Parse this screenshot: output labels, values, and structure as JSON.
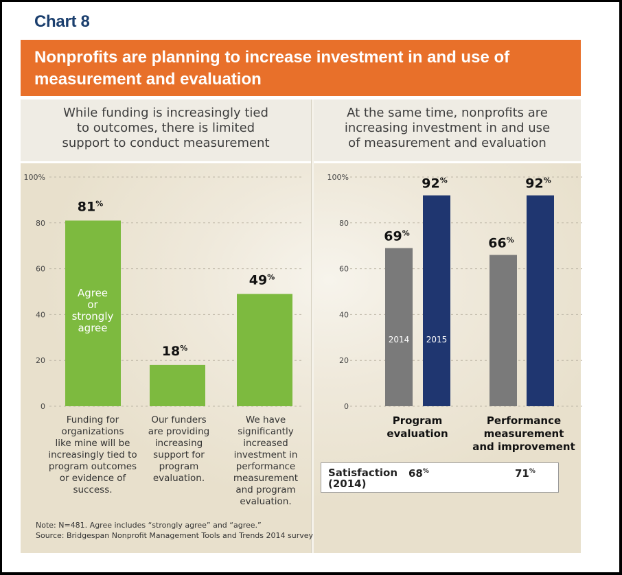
{
  "header": {
    "chart_number": "Chart 8",
    "banner_title": "Nonprofits are planning to increase investment in and use of measurement and evaluation"
  },
  "colors": {
    "banner": "#e8702a",
    "title": "#1b3f6e",
    "green_bar": "#7dba3f",
    "gray_bar": "#7a7a7a",
    "navy_bar": "#1f3670"
  },
  "chart_data": [
    {
      "type": "bar",
      "title": "While funding is increasingly tied to outcomes, there is limited support to conduct measurement",
      "categories": [
        "Funding for organizations like mine will be increasingly tied to program outcomes or evidence of success.",
        "Our funders are providing increasing support for program evaluation.",
        "We have significantly increased investment in performance measurement and program evaluation."
      ],
      "values": [
        81,
        18,
        49
      ],
      "value_labels": [
        "81",
        "18",
        "49"
      ],
      "value_suffix": "%",
      "series_label_in_bar": "Agree or strongly agree",
      "yticks": [
        "100%",
        "80",
        "60",
        "40",
        "20",
        "0"
      ],
      "ytick_values": [
        100,
        80,
        60,
        40,
        20,
        0
      ],
      "ylim": [
        0,
        100
      ],
      "grid": "dashed horizontal",
      "xlabel": "",
      "ylabel": ""
    },
    {
      "type": "bar",
      "title": "At the same time, nonprofits are increasing investment in and use of measurement and evaluation",
      "categories": [
        "Program evaluation",
        "Performance measurement and improvement"
      ],
      "series": [
        {
          "name": "2014",
          "values": [
            69,
            66
          ]
        },
        {
          "name": "2015",
          "values": [
            92,
            92
          ]
        }
      ],
      "value_suffix": "%",
      "yticks": [
        "100%",
        "80",
        "60",
        "40",
        "20",
        "0"
      ],
      "ytick_values": [
        100,
        80,
        60,
        40,
        20,
        0
      ],
      "ylim": [
        0,
        100
      ],
      "grid": "dashed horizontal",
      "legend": "labels inside first group bars",
      "xlabel": "",
      "ylabel": "",
      "satisfaction": {
        "label": "Satisfaction (2014)",
        "values": [
          "68",
          "71"
        ]
      }
    }
  ],
  "left": {
    "subtitle_lines": [
      "While funding is increasingly tied",
      "to outcomes, there is limited",
      "support to conduct measurement"
    ],
    "in_bar_lines": [
      "Agree",
      "or",
      "strongly",
      "agree"
    ],
    "category_lines": [
      [
        "Funding for",
        "organizations",
        "like mine will be",
        "increasingly tied to",
        "program outcomes",
        "or evidence of",
        "success."
      ],
      [
        "Our funders",
        "are providing",
        "increasing",
        "support for",
        "program",
        "evaluation."
      ],
      [
        "We have",
        "significantly",
        "increased",
        "investment in",
        "performance",
        "measurement",
        "and program",
        "evaluation."
      ]
    ]
  },
  "right": {
    "subtitle_lines": [
      "At the same time, nonprofits are",
      "increasing investment in and use",
      "of measurement and evaluation"
    ],
    "category_lines": [
      [
        "Program",
        "evaluation"
      ],
      [
        "Performance",
        "measurement",
        "and improvement"
      ]
    ],
    "satisfaction_label_lines": [
      "Satisfaction",
      "(2014)"
    ],
    "satisfaction_values": [
      "68",
      "71"
    ],
    "percent_sign": "%"
  },
  "footer": {
    "note": "Note: N=481. Agree includes “strongly agree” and “agree.”",
    "source": "Source: Bridgespan Nonprofit Management Tools and Trends 2014 survey"
  }
}
